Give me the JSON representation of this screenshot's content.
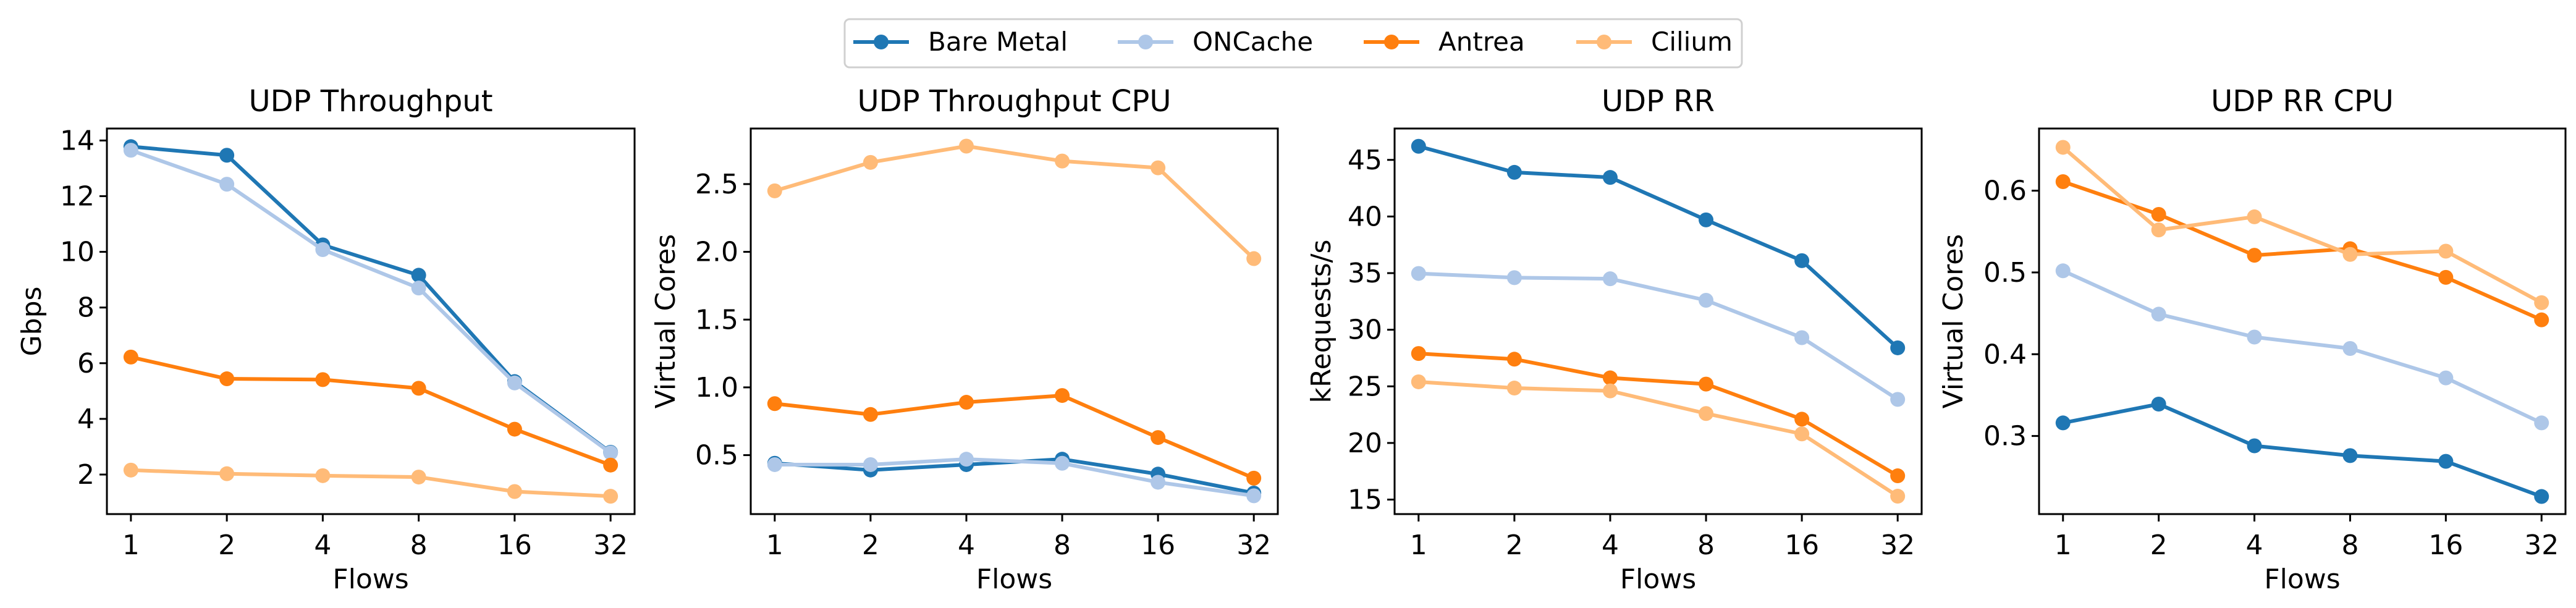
{
  "legend": {
    "placement": "top-center",
    "entries": [
      {
        "name": "Bare Metal",
        "color": "#1f77b4"
      },
      {
        "name": "ONCache",
        "color": "#aec7e8"
      },
      {
        "name": "Antrea",
        "color": "#ff7f0e"
      },
      {
        "name": "Cilium",
        "color": "#ffbb78"
      }
    ]
  },
  "chart_data": [
    {
      "type": "line",
      "title": "UDP Throughput",
      "xlabel": "Flows",
      "ylabel": "Gbps",
      "categories": [
        "1",
        "2",
        "4",
        "8",
        "16",
        "32"
      ],
      "yticks": [
        2,
        4,
        6,
        8,
        10,
        12,
        14
      ],
      "ytick_labels": [
        "2",
        "4",
        "6",
        "8",
        "10",
        "12",
        "14"
      ],
      "ylim": [
        0.58,
        14.43
      ],
      "grid": false,
      "series": [
        {
          "name": "Bare Metal",
          "values": [
            13.78,
            13.47,
            10.25,
            9.16,
            5.34,
            2.8
          ]
        },
        {
          "name": "ONCache",
          "values": [
            13.65,
            12.43,
            10.08,
            8.7,
            5.29,
            2.78
          ]
        },
        {
          "name": "Antrea",
          "values": [
            6.22,
            5.44,
            5.41,
            5.1,
            3.63,
            2.34
          ]
        },
        {
          "name": "Cilium",
          "values": [
            2.16,
            2.03,
            1.96,
            1.91,
            1.39,
            1.22
          ]
        }
      ]
    },
    {
      "type": "line",
      "title": "UDP Throughput CPU",
      "xlabel": "Flows",
      "ylabel": "Virtual Cores",
      "categories": [
        "1",
        "2",
        "4",
        "8",
        "16",
        "32"
      ],
      "yticks": [
        0.5,
        1.0,
        1.5,
        2.0,
        2.5
      ],
      "ytick_labels": [
        "0.5",
        "1.0",
        "1.5",
        "2.0",
        "2.5"
      ],
      "ylim": [
        0.065,
        2.91
      ],
      "grid": false,
      "series": [
        {
          "name": "Bare Metal",
          "values": [
            0.44,
            0.39,
            0.43,
            0.47,
            0.36,
            0.22
          ]
        },
        {
          "name": "ONCache",
          "values": [
            0.43,
            0.43,
            0.47,
            0.44,
            0.3,
            0.2
          ]
        },
        {
          "name": "Antrea",
          "values": [
            0.88,
            0.8,
            0.89,
            0.94,
            0.63,
            0.33
          ]
        },
        {
          "name": "Cilium",
          "values": [
            2.45,
            2.66,
            2.78,
            2.67,
            2.62,
            1.95
          ]
        }
      ]
    },
    {
      "type": "line",
      "title": "UDP RR",
      "xlabel": "Flows",
      "ylabel": "kRequests/s",
      "categories": [
        "1",
        "2",
        "4",
        "8",
        "16",
        "32"
      ],
      "yticks": [
        15,
        20,
        25,
        30,
        35,
        40,
        45
      ],
      "ytick_labels": [
        "15",
        "20",
        "25",
        "30",
        "35",
        "40",
        "45"
      ],
      "ylim": [
        13.72,
        47.77
      ],
      "grid": false,
      "series": [
        {
          "name": "Bare Metal",
          "values": [
            46.2,
            43.9,
            43.45,
            39.7,
            36.1,
            28.4
          ]
        },
        {
          "name": "ONCache",
          "values": [
            34.97,
            34.6,
            34.5,
            32.6,
            29.3,
            23.85
          ]
        },
        {
          "name": "Antrea",
          "values": [
            27.9,
            27.4,
            25.75,
            25.2,
            22.1,
            17.1
          ]
        },
        {
          "name": "Cilium",
          "values": [
            25.4,
            24.85,
            24.6,
            22.6,
            20.8,
            15.3
          ]
        }
      ]
    },
    {
      "type": "line",
      "title": "UDP RR CPU",
      "xlabel": "Flows",
      "ylabel": "Virtual Cores",
      "categories": [
        "1",
        "2",
        "4",
        "8",
        "16",
        "32"
      ],
      "yticks": [
        0.3,
        0.4,
        0.5,
        0.6
      ],
      "ytick_labels": [
        "0.3",
        "0.4",
        "0.5",
        "0.6"
      ],
      "ylim": [
        0.2045,
        0.676
      ],
      "grid": false,
      "series": [
        {
          "name": "Bare Metal",
          "values": [
            0.316,
            0.339,
            0.288,
            0.276,
            0.269,
            0.226
          ]
        },
        {
          "name": "ONCache",
          "values": [
            0.502,
            0.449,
            0.421,
            0.407,
            0.371,
            0.316
          ]
        },
        {
          "name": "Antrea",
          "values": [
            0.611,
            0.571,
            0.521,
            0.529,
            0.494,
            0.442
          ]
        },
        {
          "name": "Cilium",
          "values": [
            0.653,
            0.552,
            0.568,
            0.522,
            0.526,
            0.463
          ]
        }
      ]
    }
  ]
}
